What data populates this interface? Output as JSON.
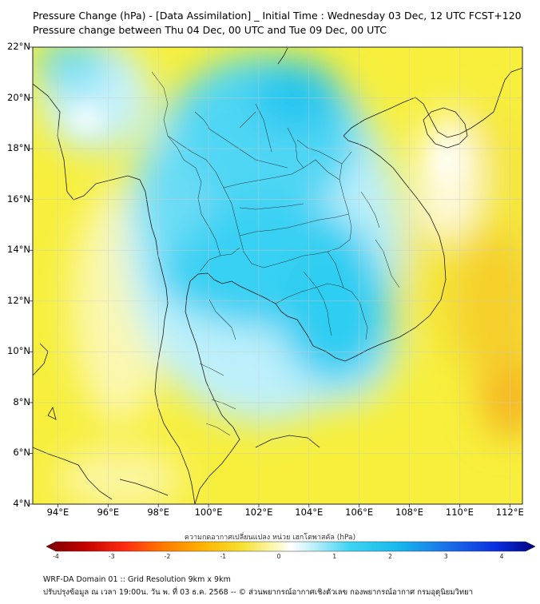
{
  "header": {
    "title_line1": "Pressure Change (hPa) - [Data Assimilation] _ Initial Time : Wednesday 03 Dec, 12 UTC FCST+120",
    "title_line2": "Pressure change between Thu 04 Dec, 00 UTC and Tue 09 Dec, 00 UTC"
  },
  "map": {
    "lat_labels": [
      "22°N",
      "20°N",
      "18°N",
      "16°N",
      "14°N",
      "12°N",
      "10°N",
      "8°N",
      "6°N",
      "4°N"
    ],
    "lon_labels": [
      "94°E",
      "96°E",
      "98°E",
      "100°E",
      "102°E",
      "104°E",
      "106°E",
      "108°E",
      "110°E",
      "112°E"
    ],
    "colors": {
      "positive_strong": "#1ec8f0",
      "positive_light": "#bff0fb",
      "neutral": "#fdfce8",
      "negative_light": "#f7f03a",
      "negative_medium": "#fbbf24",
      "boundary": "#1a1a1a"
    }
  },
  "colorbar": {
    "label": "ความกดอากาศเปลี่ยนแปลง หน่วย เฮกโตพาสคัล (hPa)",
    "ticks": [
      "-4",
      "-3",
      "-2",
      "-1",
      "0",
      "1",
      "2",
      "3",
      "4"
    ]
  },
  "footer": {
    "line1": "WRF-DA Domain 01 :: Grid Resolution 9km x 9km",
    "line2": "ปรับปรุงข้อมูล ณ เวลา 19:00น. วัน พ. ที่ 03 ธ.ค. 2568 -- © ส่วนพยากรณ์อากาศเชิงตัวเลข กองพยากรณ์อากาศ กรมอุตุนิยมวิทยา"
  }
}
